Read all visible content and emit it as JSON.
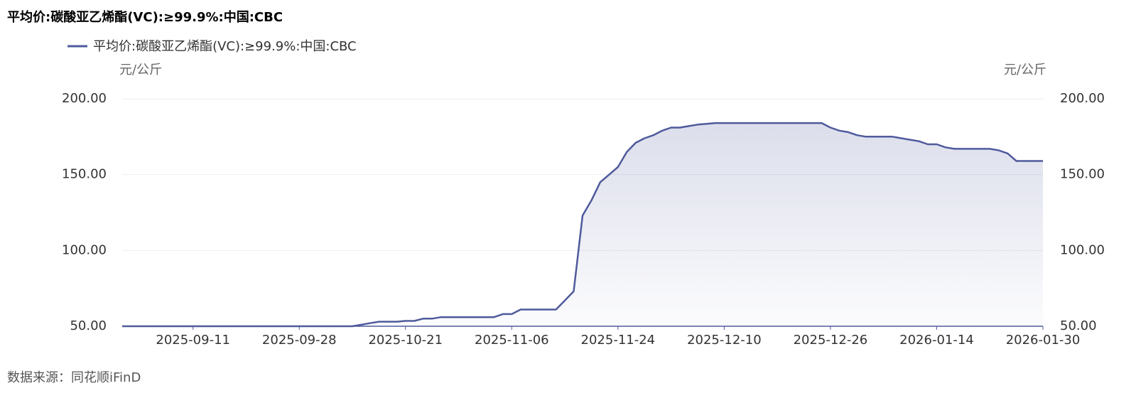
{
  "chart_data": {
    "type": "area",
    "title": "平均价:碳酸亚乙烯酯(VC):≥99.9%:中国:CBC",
    "y_unit": "元/公斤",
    "y2_unit": "元/公斤",
    "source": "数据来源：同花顺iFinD",
    "legend": "top-left",
    "grid": true,
    "x": [
      "2025-09-01",
      "2025-09-02",
      "2025-09-03",
      "2025-09-04",
      "2025-09-05",
      "2025-09-08",
      "2025-09-09",
      "2025-09-10",
      "2025-09-11",
      "2025-09-12",
      "2025-09-15",
      "2025-09-16",
      "2025-09-17",
      "2025-09-18",
      "2025-09-19",
      "2025-09-22",
      "2025-09-23",
      "2025-09-24",
      "2025-09-25",
      "2025-09-26",
      "2025-09-28",
      "2025-09-29",
      "2025-09-30",
      "2025-10-09",
      "2025-10-10",
      "2025-10-11",
      "2025-10-13",
      "2025-10-14",
      "2025-10-15",
      "2025-10-16",
      "2025-10-17",
      "2025-10-20",
      "2025-10-21",
      "2025-10-22",
      "2025-10-23",
      "2025-10-24",
      "2025-10-27",
      "2025-10-28",
      "2025-10-29",
      "2025-10-30",
      "2025-10-31",
      "2025-11-03",
      "2025-11-04",
      "2025-11-05",
      "2025-11-06",
      "2025-11-07",
      "2025-11-10",
      "2025-11-11",
      "2025-11-12",
      "2025-11-13",
      "2025-11-14",
      "2025-11-17",
      "2025-11-18",
      "2025-11-19",
      "2025-11-20",
      "2025-11-21",
      "2025-11-24",
      "2025-11-25",
      "2025-11-26",
      "2025-11-27",
      "2025-11-28",
      "2025-12-01",
      "2025-12-02",
      "2025-12-03",
      "2025-12-04",
      "2025-12-05",
      "2025-12-08",
      "2025-12-09",
      "2025-12-10",
      "2025-12-11",
      "2025-12-12",
      "2025-12-15",
      "2025-12-16",
      "2025-12-17",
      "2025-12-18",
      "2025-12-19",
      "2025-12-22",
      "2025-12-23",
      "2025-12-24",
      "2025-12-25",
      "2025-12-26",
      "2025-12-29",
      "2025-12-30",
      "2025-12-31",
      "2026-01-04",
      "2026-01-05",
      "2026-01-06",
      "2026-01-07",
      "2026-01-08",
      "2026-01-09",
      "2026-01-12",
      "2026-01-13",
      "2026-01-14",
      "2026-01-15",
      "2026-01-16",
      "2026-01-19",
      "2026-01-20",
      "2026-01-21",
      "2026-01-22",
      "2026-01-23",
      "2026-01-26",
      "2026-01-27",
      "2026-01-28",
      "2026-01-29",
      "2026-01-30"
    ],
    "xticks": [
      "2025-09-11",
      "2025-09-28",
      "2025-10-21",
      "2025-11-06",
      "2025-11-24",
      "2025-12-10",
      "2025-12-26",
      "2026-01-14",
      "2026-01-30"
    ],
    "series": [
      {
        "name": "平均价:碳酸亚乙烯酯(VC):≥99.9%:中国:CBC",
        "color": "#4f5a9c",
        "values": [
          50,
          50,
          50,
          50,
          50,
          50,
          50,
          50,
          50,
          50,
          50,
          50,
          50,
          50,
          50,
          50,
          50,
          50,
          50,
          50,
          50,
          50,
          50,
          50,
          50,
          50,
          50,
          51,
          52,
          53,
          53,
          53,
          53.5,
          53.5,
          55,
          55,
          56,
          56,
          56,
          56,
          56,
          56,
          56,
          58,
          58,
          61,
          61,
          61,
          61,
          61,
          67,
          73,
          123,
          133,
          145,
          150,
          155,
          165,
          171,
          174,
          176,
          179,
          181,
          181,
          182,
          183,
          183.5,
          184,
          184,
          184,
          184,
          184,
          184,
          184,
          184,
          184,
          184,
          184,
          184,
          184,
          181,
          179,
          178,
          176,
          175,
          175,
          175,
          175,
          174,
          173,
          172,
          170,
          170,
          168,
          167,
          167,
          167,
          167,
          167,
          166,
          164,
          159,
          159,
          159,
          159
        ]
      }
    ],
    "ylim": [
      50,
      200
    ],
    "yticks": [
      {
        "value": 50,
        "label": "50.00"
      },
      {
        "value": 100,
        "label": "100.00"
      },
      {
        "value": 150,
        "label": "150.00"
      },
      {
        "value": 200,
        "label": "200.00"
      }
    ],
    "y2lim": [
      50,
      200
    ],
    "y2ticks": [
      {
        "value": 50,
        "label": "50.00"
      },
      {
        "value": 100,
        "label": "100.00"
      },
      {
        "value": 150,
        "label": "150.00"
      },
      {
        "value": 200,
        "label": "200.00"
      }
    ]
  }
}
